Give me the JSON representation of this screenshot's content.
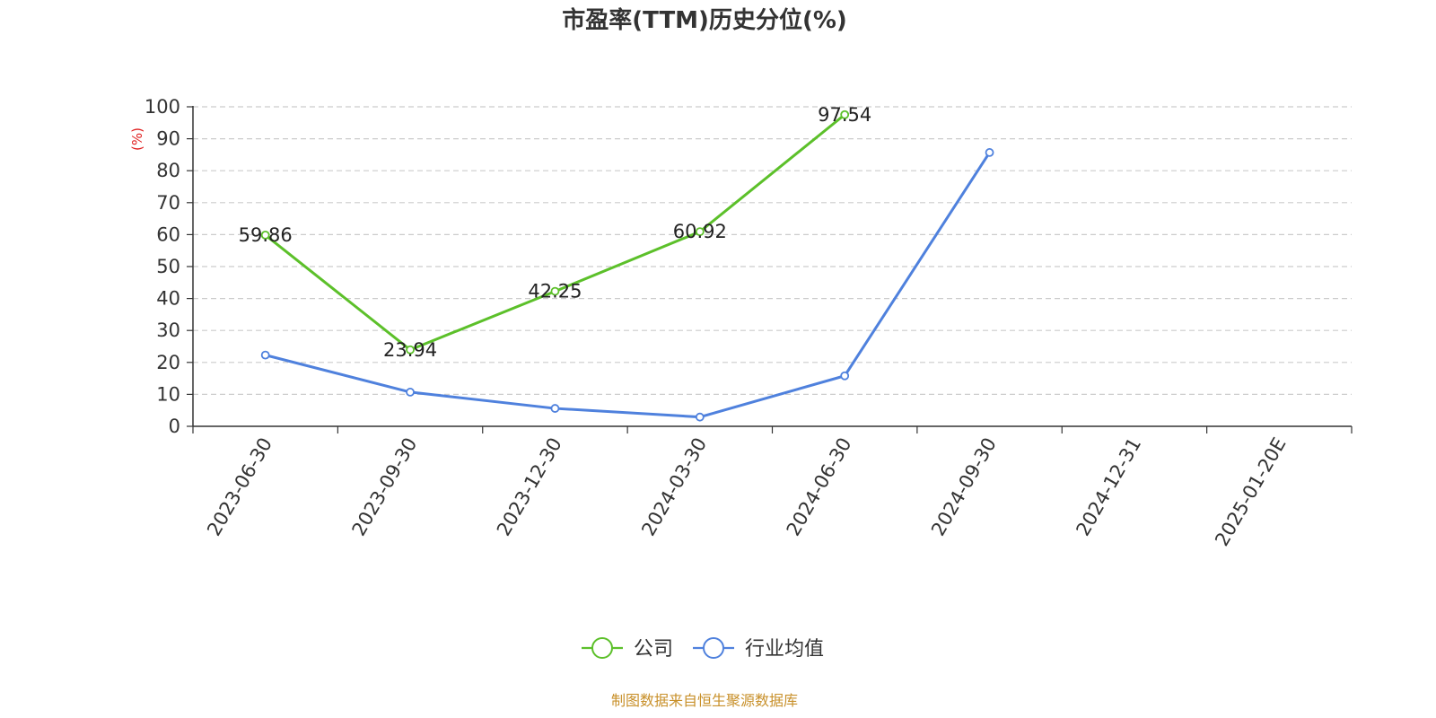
{
  "chart_data": {
    "type": "line",
    "title": "市盈率(TTM)历史分位(%)",
    "ylabel": "(%)",
    "ylim": [
      0,
      100
    ],
    "yticks": [
      0,
      10,
      20,
      30,
      40,
      50,
      60,
      70,
      80,
      90,
      100
    ],
    "grid": true,
    "legend_position": "bottom-center",
    "categories": [
      "2023-06-30",
      "2023-09-30",
      "2023-12-30",
      "2024-03-30",
      "2024-06-30",
      "2024-09-30",
      "2024-12-31",
      "2025-01-20E"
    ],
    "series": [
      {
        "name": "公司",
        "color": "#5cc02a",
        "values": [
          59.86,
          23.94,
          42.25,
          60.92,
          97.54,
          null,
          null,
          null
        ],
        "labels": [
          "59.86",
          "23.94",
          "42.25",
          "60.92",
          "97.54",
          null,
          null,
          null
        ]
      },
      {
        "name": "行业均值",
        "color": "#4f81dd",
        "values": [
          22.3,
          10.7,
          5.6,
          2.9,
          15.8,
          85.7,
          null,
          null
        ],
        "labels": [
          null,
          null,
          null,
          null,
          null,
          null,
          null,
          null
        ]
      }
    ],
    "source": "制图数据来自恒生聚源数据库",
    "source_color": "#c8902a",
    "unit_color": "#e02020"
  }
}
